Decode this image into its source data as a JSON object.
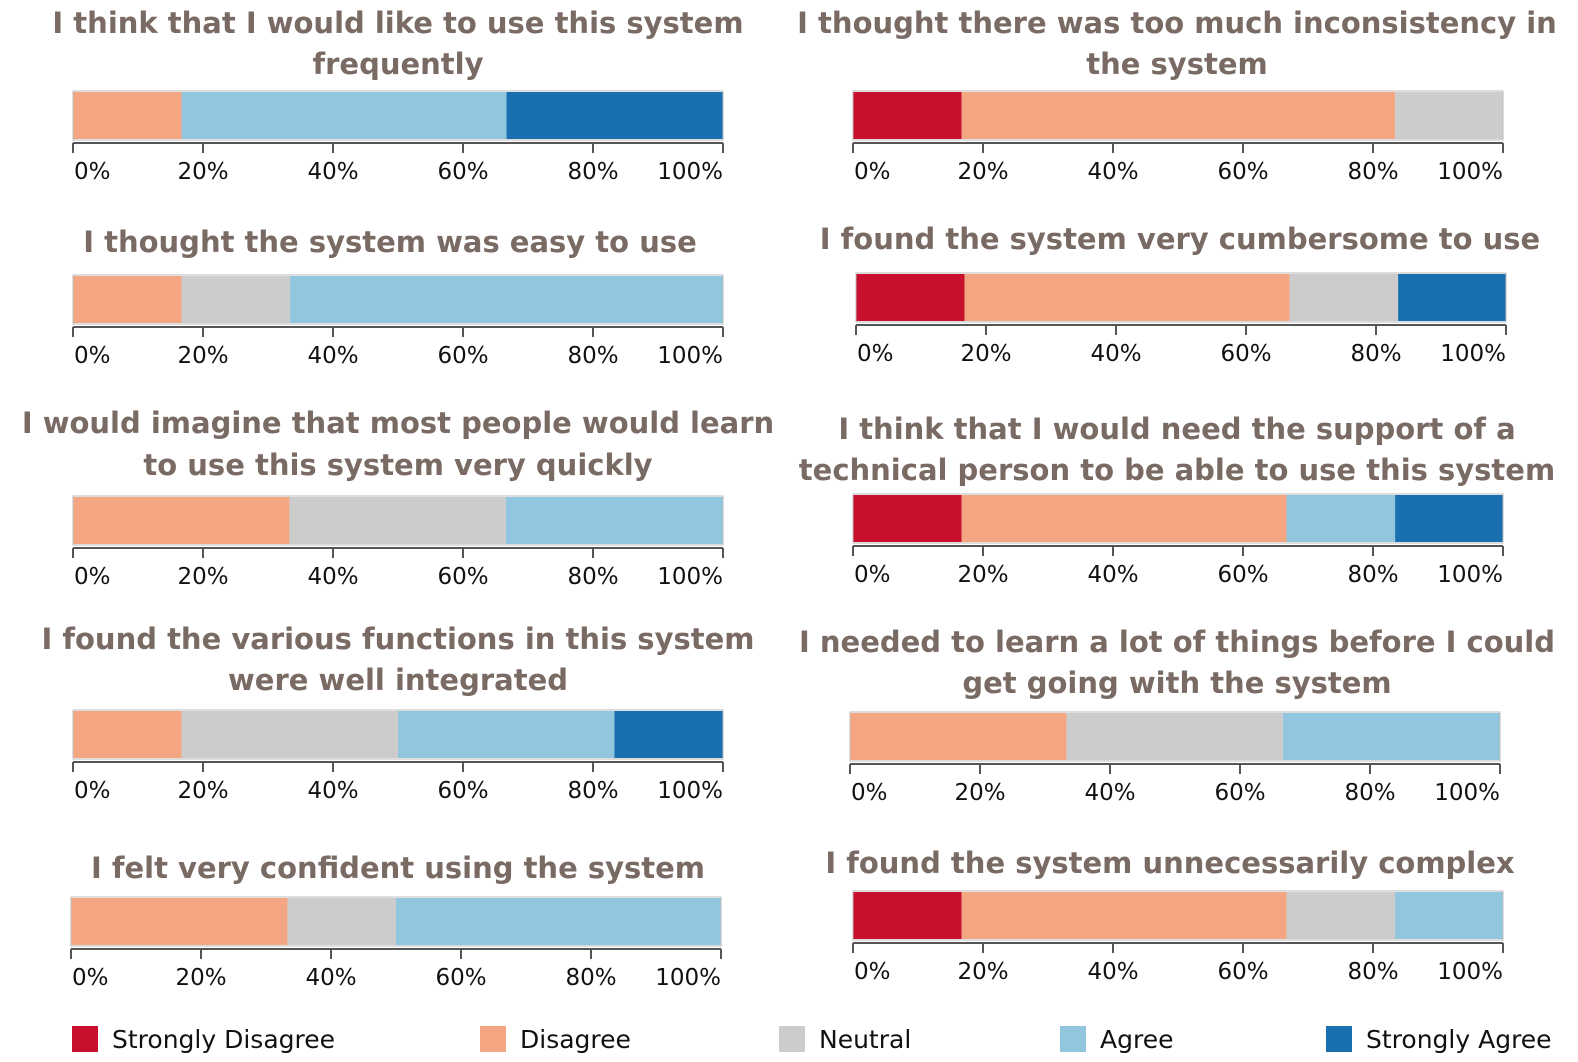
{
  "colors": {
    "strongly_disagree": "#c8102e",
    "disagree": "#f4a582",
    "neutral": "#cccccc",
    "agree": "#92c5de",
    "strongly_agree": "#1a6faf",
    "title": "#7a6a64",
    "axis": "#555555"
  },
  "legend": [
    {
      "key": "strongly_disagree",
      "label": "Strongly Disagree"
    },
    {
      "key": "disagree",
      "label": "Disagree"
    },
    {
      "key": "neutral",
      "label": "Neutral"
    },
    {
      "key": "agree",
      "label": "Agree"
    },
    {
      "key": "strongly_agree",
      "label": "Strongly Agree"
    }
  ],
  "chart_data": [
    {
      "type": "bar",
      "stacked": true,
      "orientation": "horizontal",
      "title": [
        "I think that I would like to use this system",
        "frequently"
      ],
      "xlim": [
        0,
        100
      ],
      "xticks": [
        "0%",
        "20%",
        "40%",
        "60%",
        "80%",
        "100%"
      ],
      "series": [
        {
          "key": "strongly_disagree",
          "value": 0
        },
        {
          "key": "disagree",
          "value": 16.7
        },
        {
          "key": "neutral",
          "value": 0
        },
        {
          "key": "agree",
          "value": 50
        },
        {
          "key": "strongly_agree",
          "value": 33.3
        }
      ]
    },
    {
      "type": "bar",
      "stacked": true,
      "orientation": "horizontal",
      "title": [
        "I thought there was too much inconsistency in",
        "the system"
      ],
      "xlim": [
        0,
        100
      ],
      "xticks": [
        "0%",
        "20%",
        "40%",
        "60%",
        "80%",
        "100%"
      ],
      "series": [
        {
          "key": "strongly_disagree",
          "value": 16.7
        },
        {
          "key": "disagree",
          "value": 66.7
        },
        {
          "key": "neutral",
          "value": 16.6
        },
        {
          "key": "agree",
          "value": 0
        },
        {
          "key": "strongly_agree",
          "value": 0
        }
      ]
    },
    {
      "type": "bar",
      "stacked": true,
      "orientation": "horizontal",
      "title": [
        "I thought the system was easy to use"
      ],
      "xlim": [
        0,
        100
      ],
      "xticks": [
        "0%",
        "20%",
        "40%",
        "60%",
        "80%",
        "100%"
      ],
      "series": [
        {
          "key": "strongly_disagree",
          "value": 0
        },
        {
          "key": "disagree",
          "value": 16.7
        },
        {
          "key": "neutral",
          "value": 16.7
        },
        {
          "key": "agree",
          "value": 66.6
        },
        {
          "key": "strongly_agree",
          "value": 0
        }
      ]
    },
    {
      "type": "bar",
      "stacked": true,
      "orientation": "horizontal",
      "title": [
        "I found the system very cumbersome to use"
      ],
      "xlim": [
        0,
        100
      ],
      "xticks": [
        "0%",
        "20%",
        "40%",
        "60%",
        "80%",
        "100%"
      ],
      "series": [
        {
          "key": "strongly_disagree",
          "value": 16.7
        },
        {
          "key": "disagree",
          "value": 50
        },
        {
          "key": "neutral",
          "value": 16.7
        },
        {
          "key": "agree",
          "value": 0
        },
        {
          "key": "strongly_agree",
          "value": 16.6
        }
      ]
    },
    {
      "type": "bar",
      "stacked": true,
      "orientation": "horizontal",
      "title": [
        "I would imagine that most people would learn",
        "to use this system very quickly"
      ],
      "xlim": [
        0,
        100
      ],
      "xticks": [
        "0%",
        "20%",
        "40%",
        "60%",
        "80%",
        "100%"
      ],
      "series": [
        {
          "key": "strongly_disagree",
          "value": 0
        },
        {
          "key": "disagree",
          "value": 33.3
        },
        {
          "key": "neutral",
          "value": 33.3
        },
        {
          "key": "agree",
          "value": 33.4
        },
        {
          "key": "strongly_agree",
          "value": 0
        }
      ]
    },
    {
      "type": "bar",
      "stacked": true,
      "orientation": "horizontal",
      "title": [
        "I think that I would need the support of a",
        "technical person to be able to use this system"
      ],
      "xlim": [
        0,
        100
      ],
      "xticks": [
        "0%",
        "20%",
        "40%",
        "60%",
        "80%",
        "100%"
      ],
      "series": [
        {
          "key": "strongly_disagree",
          "value": 16.7
        },
        {
          "key": "disagree",
          "value": 50
        },
        {
          "key": "neutral",
          "value": 0
        },
        {
          "key": "agree",
          "value": 16.7
        },
        {
          "key": "strongly_agree",
          "value": 16.6
        }
      ]
    },
    {
      "type": "bar",
      "stacked": true,
      "orientation": "horizontal",
      "title": [
        "I found the various functions in this system",
        "were well integrated"
      ],
      "xlim": [
        0,
        100
      ],
      "xticks": [
        "0%",
        "20%",
        "40%",
        "60%",
        "80%",
        "100%"
      ],
      "series": [
        {
          "key": "strongly_disagree",
          "value": 0
        },
        {
          "key": "disagree",
          "value": 16.7
        },
        {
          "key": "neutral",
          "value": 33.3
        },
        {
          "key": "agree",
          "value": 33.3
        },
        {
          "key": "strongly_agree",
          "value": 16.7
        }
      ]
    },
    {
      "type": "bar",
      "stacked": true,
      "orientation": "horizontal",
      "title": [
        "I needed to learn a lot of things before I could",
        "get going with the system"
      ],
      "xlim": [
        0,
        100
      ],
      "xticks": [
        "0%",
        "20%",
        "40%",
        "60%",
        "80%",
        "100%"
      ],
      "series": [
        {
          "key": "strongly_disagree",
          "value": 0
        },
        {
          "key": "disagree",
          "value": 33.3
        },
        {
          "key": "neutral",
          "value": 33.3
        },
        {
          "key": "agree",
          "value": 33.4
        },
        {
          "key": "strongly_agree",
          "value": 0
        }
      ]
    },
    {
      "type": "bar",
      "stacked": true,
      "orientation": "horizontal",
      "title": [
        "I felt very confident using the system"
      ],
      "xlim": [
        0,
        100
      ],
      "xticks": [
        "0%",
        "20%",
        "40%",
        "60%",
        "80%",
        "100%"
      ],
      "series": [
        {
          "key": "strongly_disagree",
          "value": 0
        },
        {
          "key": "disagree",
          "value": 33.3
        },
        {
          "key": "neutral",
          "value": 16.7
        },
        {
          "key": "agree",
          "value": 50
        },
        {
          "key": "strongly_agree",
          "value": 0
        }
      ]
    },
    {
      "type": "bar",
      "stacked": true,
      "orientation": "horizontal",
      "title": [
        "I found the system unnecessarily complex"
      ],
      "xlim": [
        0,
        100
      ],
      "xticks": [
        "0%",
        "20%",
        "40%",
        "60%",
        "80%",
        "100%"
      ],
      "series": [
        {
          "key": "strongly_disagree",
          "value": 16.7
        },
        {
          "key": "disagree",
          "value": 50
        },
        {
          "key": "neutral",
          "value": 16.7
        },
        {
          "key": "agree",
          "value": 16.6
        },
        {
          "key": "strongly_agree",
          "value": 0
        }
      ]
    }
  ]
}
